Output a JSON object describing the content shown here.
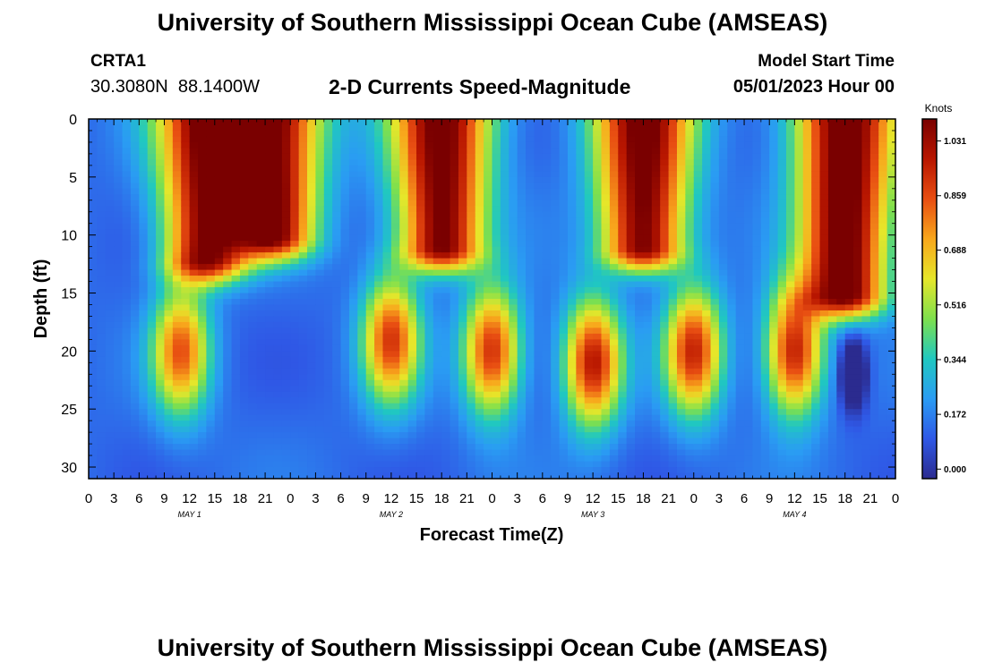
{
  "header": {
    "title": "University of Southern Mississippi Ocean Cube (AMSEAS)",
    "station": "CRTA1",
    "coords": "30.3080N  88.1400W",
    "subtitle": "2-D Currents Speed-Magnitude",
    "model_start_label": "Model Start Time",
    "model_start_value": "05/01/2023 Hour 00"
  },
  "footer": {
    "title": "University of Southern Mississippi Ocean Cube (AMSEAS)"
  },
  "chart_data": {
    "type": "heatmap",
    "title": "2-D Currents Speed-Magnitude",
    "xlabel": "Forecast Time(Z)",
    "ylabel": "Depth (ft)",
    "x_range_hours": [
      0,
      96
    ],
    "ylim": [
      0,
      31
    ],
    "y_reversed": true,
    "x_tick_labels": [
      "0",
      "3",
      "6",
      "9",
      "12",
      "15",
      "18",
      "21",
      "0",
      "3",
      "6",
      "9",
      "12",
      "15",
      "18",
      "21",
      "0",
      "3",
      "6",
      "9",
      "12",
      "15",
      "18",
      "21",
      "0",
      "3",
      "6",
      "9",
      "12",
      "15",
      "18",
      "21",
      "0"
    ],
    "y_ticks": [
      0,
      5,
      10,
      15,
      20,
      25,
      30
    ],
    "day_labels": [
      {
        "label": "MAY 1",
        "hour": 12
      },
      {
        "label": "MAY 2",
        "hour": 36
      },
      {
        "label": "MAY 3",
        "hour": 60
      },
      {
        "label": "MAY 4",
        "hour": 84
      }
    ],
    "colorbar": {
      "unit": "Knots",
      "vmin": -0.03,
      "vmax": 1.1,
      "ticks": [
        1.031,
        0.859,
        0.688,
        0.516,
        0.344,
        0.172,
        0.0
      ],
      "tick_labels": [
        "1.031",
        "0.859",
        "0.688",
        "0.516",
        "0.344",
        "0.172",
        "0.000"
      ],
      "colors": [
        "#2b2b8f",
        "#2f58e6",
        "#2a9cf3",
        "#20c8c0",
        "#7ee04d",
        "#e6e62a",
        "#f8a71c",
        "#e84e12",
        "#b81600",
        "#7a0000"
      ]
    },
    "speed_structure": {
      "surface_peaks": [
        {
          "hour": 14,
          "depth_max": 12,
          "speed": 0.95
        },
        {
          "hour": 22,
          "depth_max": 10,
          "speed": 0.95
        },
        {
          "hour": 42,
          "depth_max": 11,
          "speed": 1.0
        },
        {
          "hour": 66,
          "depth_max": 11,
          "speed": 1.0
        },
        {
          "hour": 90,
          "depth_max": 15,
          "speed": 1.05
        }
      ],
      "subsurface_peaks": [
        {
          "hour": 11,
          "depth": 20,
          "speed": 0.7
        },
        {
          "hour": 36,
          "depth": 19,
          "speed": 0.75
        },
        {
          "hour": 48,
          "depth": 20,
          "speed": 0.8
        },
        {
          "hour": 60,
          "depth": 21,
          "speed": 0.85
        },
        {
          "hour": 72,
          "depth": 20,
          "speed": 0.8
        },
        {
          "hour": 84,
          "depth": 20,
          "speed": 0.85
        }
      ],
      "minimum_near": [
        {
          "hour": 91,
          "depth": 22,
          "speed": 0.0
        }
      ]
    }
  }
}
